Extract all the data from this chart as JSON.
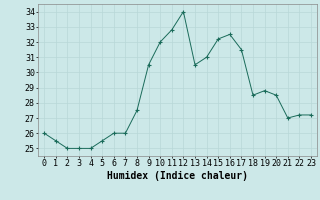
{
  "x": [
    0,
    1,
    2,
    3,
    4,
    5,
    6,
    7,
    8,
    9,
    10,
    11,
    12,
    13,
    14,
    15,
    16,
    17,
    18,
    19,
    20,
    21,
    22,
    23
  ],
  "y": [
    26.0,
    25.5,
    25.0,
    25.0,
    25.0,
    25.5,
    26.0,
    26.0,
    27.5,
    30.5,
    32.0,
    32.8,
    34.0,
    30.5,
    31.0,
    32.2,
    32.5,
    31.5,
    28.5,
    28.8,
    28.5,
    27.0,
    27.2,
    27.2
  ],
  "line_color": "#1a6b5a",
  "marker": "+",
  "background_color": "#cce8e8",
  "grid_color": "#b8d8d8",
  "xlabel": "Humidex (Indice chaleur)",
  "xlabel_fontsize": 7,
  "tick_fontsize": 6,
  "ylim": [
    24.5,
    34.5
  ],
  "xlim": [
    -0.5,
    23.5
  ],
  "yticks": [
    25,
    26,
    27,
    28,
    29,
    30,
    31,
    32,
    33,
    34
  ],
  "xtick_labels": [
    "0",
    "1",
    "2",
    "3",
    "4",
    "5",
    "6",
    "7",
    "8",
    "9",
    "10",
    "11",
    "12",
    "13",
    "14",
    "15",
    "16",
    "17",
    "18",
    "19",
    "20",
    "21",
    "22",
    "23"
  ]
}
